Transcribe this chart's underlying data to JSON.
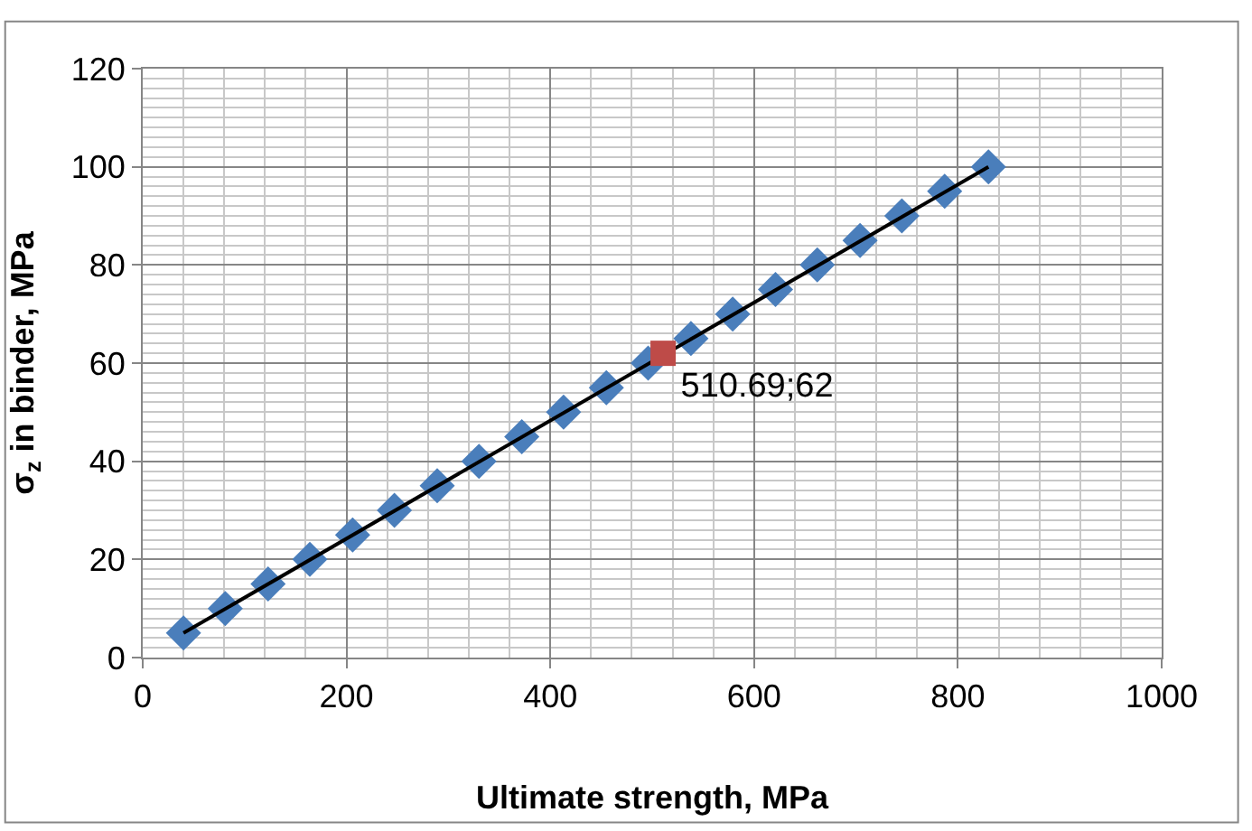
{
  "chart_data": {
    "type": "scatter",
    "xlabel": "Ultimate strength, MPa",
    "ylabel": "σ$_{z}$ in binder, MPa",
    "xlim": [
      0,
      1000
    ],
    "xticks": [
      0,
      200,
      400,
      600,
      800,
      1000
    ],
    "ylim": [
      0,
      120
    ],
    "yticks": [
      0,
      20,
      40,
      60,
      80,
      100,
      120
    ],
    "grid": true,
    "series": [
      {
        "marker": "diamond",
        "color": "#4a7ebb",
        "x": [
          40,
          81,
          123,
          164,
          206,
          247,
          289,
          330,
          372,
          413,
          455,
          496,
          538,
          579,
          621,
          662,
          704,
          745,
          787,
          830
        ],
        "values": [
          5,
          10,
          15,
          20,
          25,
          30,
          35,
          40,
          45,
          50,
          55,
          60,
          65,
          70,
          75,
          80,
          85,
          90,
          95,
          100
        ]
      },
      {
        "type": "line",
        "marker": "none",
        "color": "#000000",
        "x": [
          40,
          830
        ],
        "values": [
          5,
          100
        ]
      },
      {
        "marker": "square",
        "color": "#be4b48",
        "x": [
          510.69
        ],
        "values": [
          62
        ],
        "value_labels": [
          "510.69;62"
        ]
      }
    ]
  }
}
